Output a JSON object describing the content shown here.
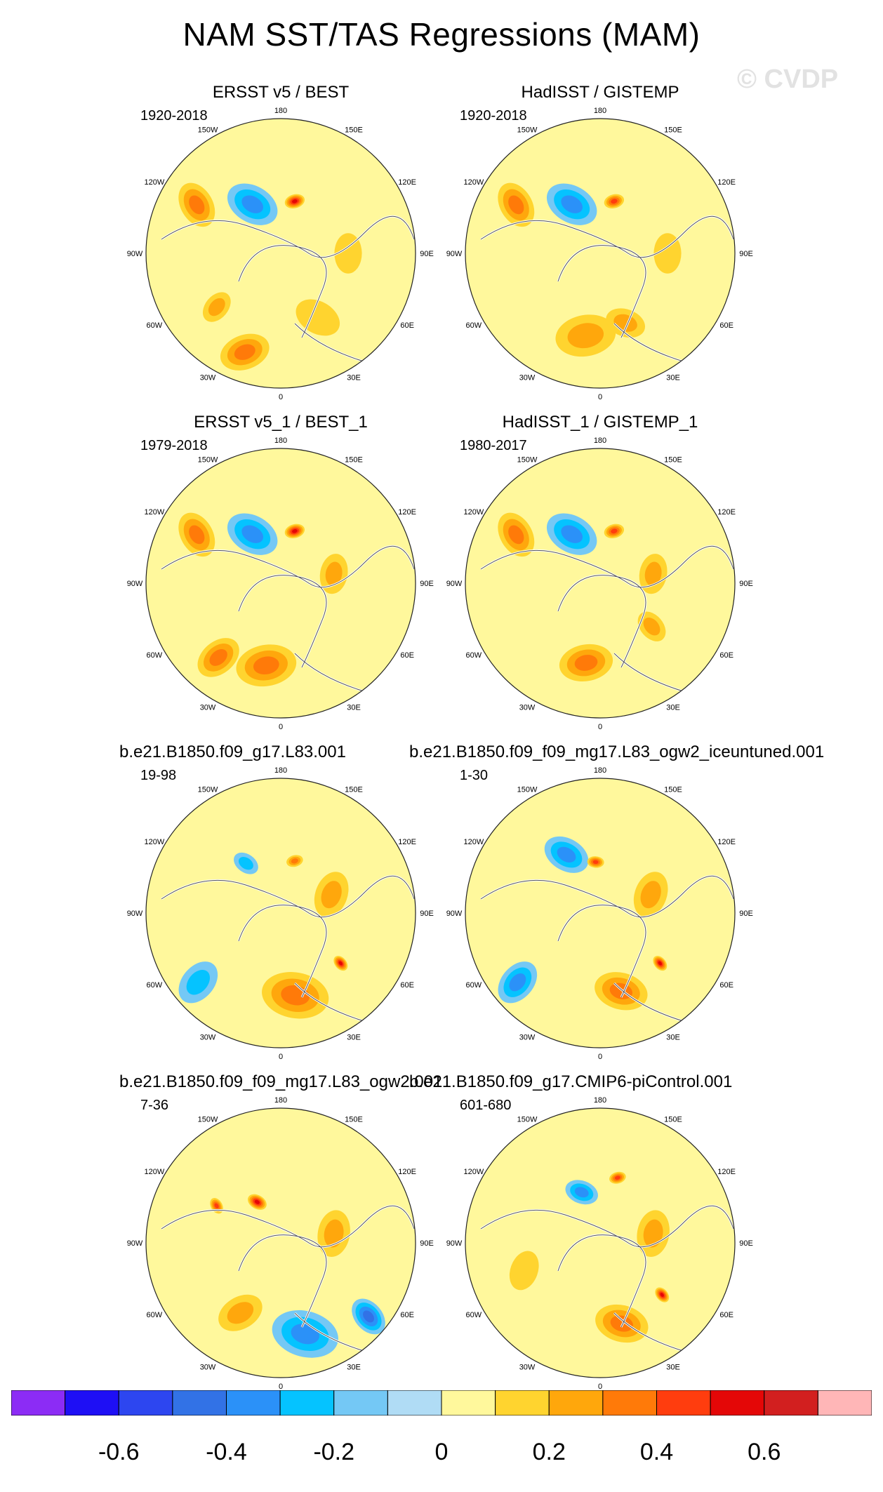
{
  "title": "NAM SST/TAS Regressions (MAM)",
  "watermark": "© CVDP",
  "chart_data": {
    "type": "heatmap",
    "projection": "polar stereographic (Northern Hemisphere)",
    "longitude_labels": [
      "180",
      "150E",
      "120E",
      "90E",
      "60E",
      "30E",
      "0",
      "30W",
      "60W",
      "90W",
      "120W",
      "150W"
    ],
    "panels": [
      {
        "title": "ERSST v5 / BEST",
        "years": "1920-2018",
        "blobs": [
          {
            "lon": -160,
            "r": 0.78,
            "size": 0.15,
            "value": 0.25
          },
          {
            "lon": -130,
            "r": 0.62,
            "size": 0.1,
            "value": 0.2
          },
          {
            "lon": -60,
            "r": 0.72,
            "size": 0.14,
            "value": 0.25
          },
          {
            "lon": -30,
            "r": 0.42,
            "size": 0.16,
            "value": -0.35
          },
          {
            "lon": 15,
            "r": 0.4,
            "size": 0.06,
            "value": 0.45
          },
          {
            "lon": 90,
            "r": 0.5,
            "size": 0.12,
            "value": 0.15
          },
          {
            "lon": 150,
            "r": 0.55,
            "size": 0.14,
            "value": 0.12
          }
        ]
      },
      {
        "title": "HadISST / GISTEMP",
        "years": "1920-2018",
        "blobs": [
          {
            "lon": -170,
            "r": 0.62,
            "size": 0.18,
            "value": 0.2
          },
          {
            "lon": 160,
            "r": 0.55,
            "size": 0.12,
            "value": 0.2
          },
          {
            "lon": -60,
            "r": 0.72,
            "size": 0.14,
            "value": 0.25
          },
          {
            "lon": -30,
            "r": 0.42,
            "size": 0.16,
            "value": -0.35
          },
          {
            "lon": 15,
            "r": 0.4,
            "size": 0.06,
            "value": 0.4
          },
          {
            "lon": 90,
            "r": 0.5,
            "size": 0.12,
            "value": 0.15
          }
        ]
      },
      {
        "title": "ERSST v5_1 / BEST_1",
        "years": "1979-2018",
        "blobs": [
          {
            "lon": -170,
            "r": 0.62,
            "size": 0.18,
            "value": 0.25
          },
          {
            "lon": -140,
            "r": 0.72,
            "size": 0.14,
            "value": 0.25
          },
          {
            "lon": -60,
            "r": 0.72,
            "size": 0.14,
            "value": 0.3
          },
          {
            "lon": -30,
            "r": 0.42,
            "size": 0.16,
            "value": -0.35
          },
          {
            "lon": 15,
            "r": 0.4,
            "size": 0.06,
            "value": 0.45
          },
          {
            "lon": 80,
            "r": 0.4,
            "size": 0.12,
            "value": 0.2
          }
        ]
      },
      {
        "title": "HadISST_1 / GISTEMP_1",
        "years": "1980-2017",
        "blobs": [
          {
            "lon": -170,
            "r": 0.6,
            "size": 0.16,
            "value": 0.25
          },
          {
            "lon": -60,
            "r": 0.72,
            "size": 0.14,
            "value": 0.3
          },
          {
            "lon": -30,
            "r": 0.42,
            "size": 0.16,
            "value": -0.3
          },
          {
            "lon": 15,
            "r": 0.4,
            "size": 0.06,
            "value": 0.4
          },
          {
            "lon": 80,
            "r": 0.4,
            "size": 0.12,
            "value": 0.2
          },
          {
            "lon": 130,
            "r": 0.5,
            "size": 0.1,
            "value": 0.2
          }
        ]
      },
      {
        "title": "b.e21.B1850.f09_g17.L83.001",
        "years": "19-98",
        "blobs": [
          {
            "lon": 170,
            "r": 0.62,
            "size": 0.2,
            "value": 0.3
          },
          {
            "lon": 130,
            "r": 0.58,
            "size": 0.05,
            "value": 0.5
          },
          {
            "lon": -130,
            "r": 0.8,
            "size": 0.14,
            "value": -0.2
          },
          {
            "lon": -35,
            "r": 0.45,
            "size": 0.08,
            "value": -0.2
          },
          {
            "lon": 15,
            "r": 0.4,
            "size": 0.05,
            "value": 0.35
          },
          {
            "lon": 70,
            "r": 0.4,
            "size": 0.14,
            "value": 0.2
          }
        ]
      },
      {
        "title": "b.e21.B1850.f09_f09_mg17.L83_ogw2_iceuntuned.001",
        "years": "1-30",
        "blobs": [
          {
            "lon": 165,
            "r": 0.6,
            "size": 0.16,
            "value": 0.25
          },
          {
            "lon": 130,
            "r": 0.58,
            "size": 0.05,
            "value": 0.45
          },
          {
            "lon": -130,
            "r": 0.8,
            "size": 0.14,
            "value": -0.25
          },
          {
            "lon": -30,
            "r": 0.5,
            "size": 0.14,
            "value": -0.3
          },
          {
            "lon": -5,
            "r": 0.38,
            "size": 0.05,
            "value": 0.4
          },
          {
            "lon": 70,
            "r": 0.4,
            "size": 0.14,
            "value": 0.2
          }
        ]
      },
      {
        "title": "b.e21.B1850.f09_f09_mg17.L83_ogw2.001",
        "years": "7-36",
        "blobs": [
          {
            "lon": 165,
            "r": 0.7,
            "size": 0.2,
            "value": -0.3
          },
          {
            "lon": 130,
            "r": 0.85,
            "size": 0.12,
            "value": -0.4
          },
          {
            "lon": -150,
            "r": 0.6,
            "size": 0.14,
            "value": 0.2
          },
          {
            "lon": -30,
            "r": 0.35,
            "size": 0.06,
            "value": 0.45
          },
          {
            "lon": -60,
            "r": 0.55,
            "size": 0.05,
            "value": 0.4
          },
          {
            "lon": 80,
            "r": 0.4,
            "size": 0.14,
            "value": 0.2
          }
        ]
      },
      {
        "title": "b.e21.B1850.f09_g17.CMIP6-piControl.001",
        "years": "601-680",
        "blobs": [
          {
            "lon": 165,
            "r": 0.62,
            "size": 0.16,
            "value": 0.25
          },
          {
            "lon": 130,
            "r": 0.6,
            "size": 0.05,
            "value": 0.45
          },
          {
            "lon": -20,
            "r": 0.4,
            "size": 0.1,
            "value": -0.25
          },
          {
            "lon": 15,
            "r": 0.5,
            "size": 0.05,
            "value": 0.4
          },
          {
            "lon": 80,
            "r": 0.4,
            "size": 0.14,
            "value": 0.2
          },
          {
            "lon": -110,
            "r": 0.6,
            "size": 0.12,
            "value": 0.12
          }
        ]
      }
    ],
    "colorbar": {
      "colors": [
        "#8c2cf5",
        "#1e0ff5",
        "#2d46f0",
        "#3272e6",
        "#2b91f8",
        "#05c3ff",
        "#74c8f5",
        "#b0dcf5",
        "#fff89c",
        "#ffd42f",
        "#ffa70c",
        "#ff7a09",
        "#ff3d0e",
        "#e40707",
        "#d21f1f",
        "#ffb6b7"
      ],
      "bounds": [
        -0.7,
        -0.6,
        -0.5,
        -0.4,
        -0.3,
        -0.2,
        -0.1,
        0,
        0.1,
        0.2,
        0.3,
        0.4,
        0.5,
        0.6,
        0.7
      ],
      "tick_labels": [
        "-0.6",
        "-0.4",
        "-0.2",
        "0",
        "0.2",
        "0.4",
        "0.6"
      ],
      "tick_values": [
        -0.6,
        -0.4,
        -0.2,
        0,
        0.2,
        0.4,
        0.6
      ]
    }
  }
}
